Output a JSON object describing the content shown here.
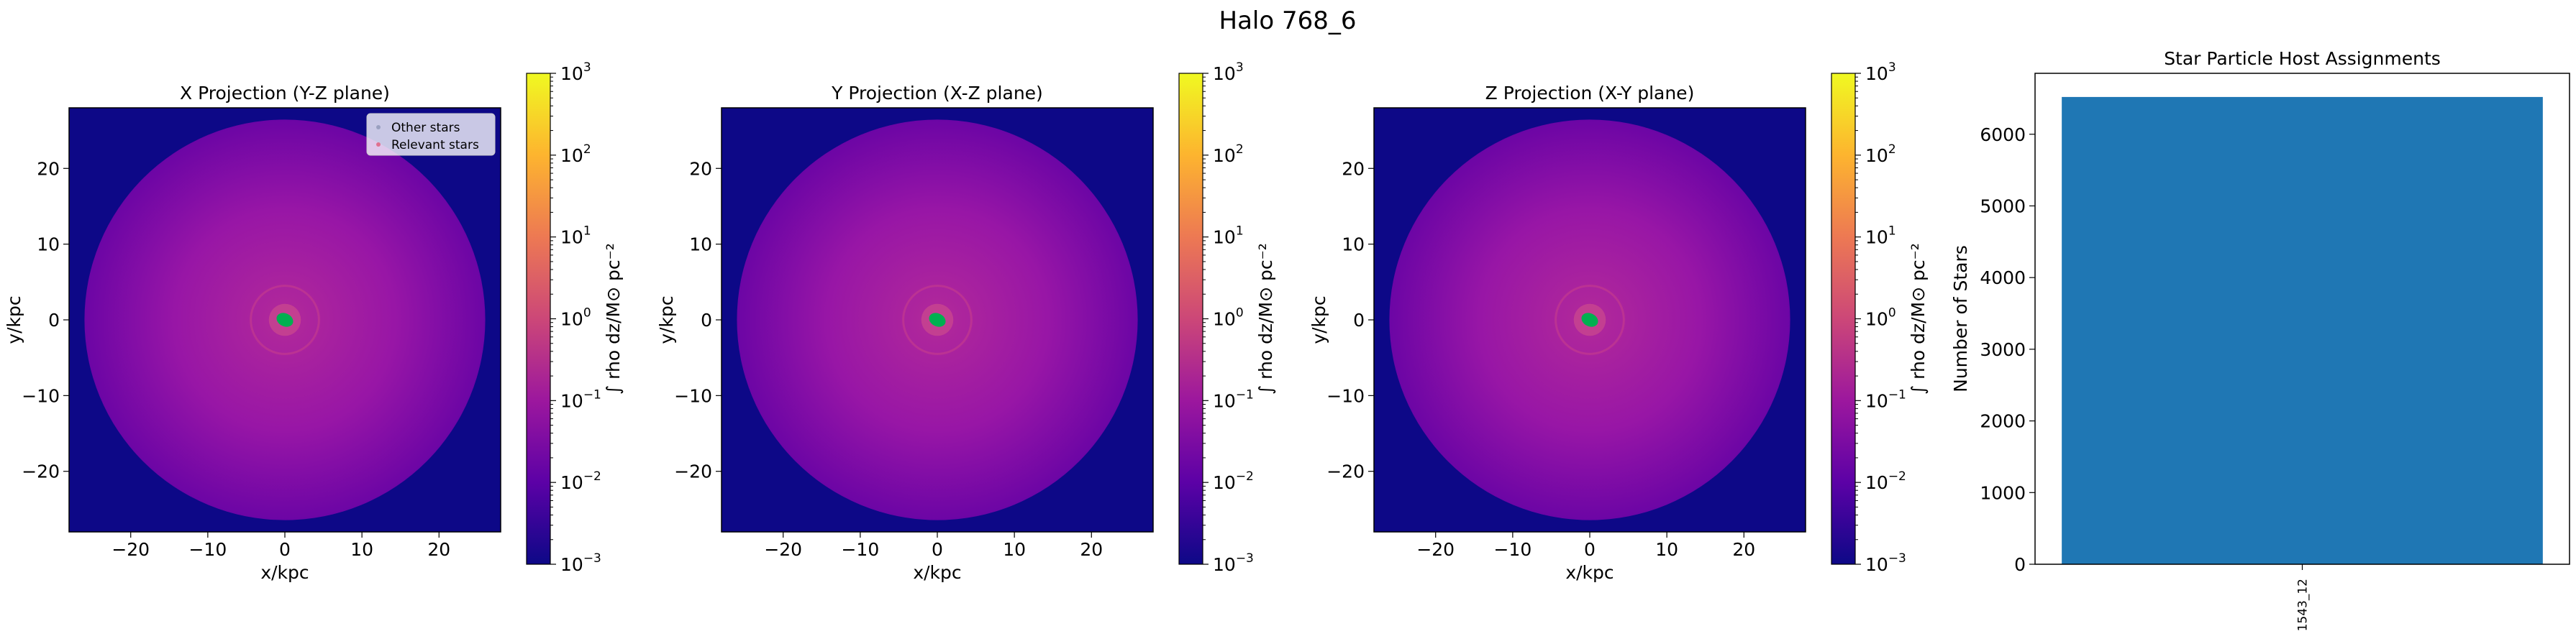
{
  "figure": {
    "suptitle": "Halo 768_6"
  },
  "colors": {
    "cmap": [
      "#0d0887",
      "#5c01a6",
      "#9c179e",
      "#cc4778",
      "#ed7953",
      "#fdb42f",
      "#f0f921"
    ],
    "halo_outer": "#6c05a5",
    "halo_mid": "#9816a6",
    "halo_inner": "#b2299a",
    "relevant_star": "#00b050",
    "bar": "#1f77b4"
  },
  "chart_data": [
    {
      "type": "heatmap",
      "title": "X Projection (Y-Z plane)",
      "xlabel": "x/kpc",
      "ylabel": "y/kpc",
      "xlim": [
        -28,
        28
      ],
      "ylim": [
        -28,
        28
      ],
      "xticks": [
        -20,
        -10,
        0,
        10,
        20
      ],
      "yticks": [
        -20,
        -10,
        0,
        10,
        20
      ],
      "xtick_labels": [
        "−20",
        "−10",
        "0",
        "10",
        "20"
      ],
      "ytick_labels": [
        "−20",
        "−10",
        "0",
        "10",
        "20"
      ],
      "colorbar": {
        "label": "∫ rho dz/M⊙ pc⁻²",
        "scale": "log",
        "range": [
          0.001,
          1000
        ],
        "tick_labels": [
          "10",
          "10",
          "10",
          "10",
          "10",
          "10",
          "10"
        ],
        "tick_exponents": [
          "−3",
          "−2",
          "−1",
          "0",
          "1",
          "2",
          "3"
        ]
      },
      "legend": {
        "position": "top-right",
        "entries": [
          "Other stars",
          "Relevant stars"
        ]
      },
      "star_cluster": {
        "x": 0,
        "y": 0
      },
      "halo_radius_kpc": 26
    },
    {
      "type": "heatmap",
      "title": "Y Projection (X-Z plane)",
      "xlabel": "x/kpc",
      "ylabel": "y/kpc",
      "xlim": [
        -28,
        28
      ],
      "ylim": [
        -28,
        28
      ],
      "xticks": [
        -20,
        -10,
        0,
        10,
        20
      ],
      "yticks": [
        -20,
        -10,
        0,
        10,
        20
      ],
      "xtick_labels": [
        "−20",
        "−10",
        "0",
        "10",
        "20"
      ],
      "ytick_labels": [
        "−20",
        "−10",
        "0",
        "10",
        "20"
      ],
      "colorbar": {
        "label": "∫ rho dz/M⊙ pc⁻²",
        "scale": "log",
        "range": [
          0.001,
          1000
        ],
        "tick_labels": [
          "10",
          "10",
          "10",
          "10",
          "10",
          "10",
          "10"
        ],
        "tick_exponents": [
          "−3",
          "−2",
          "−1",
          "0",
          "1",
          "2",
          "3"
        ]
      },
      "star_cluster": {
        "x": 0,
        "y": 0
      },
      "halo_radius_kpc": 26
    },
    {
      "type": "heatmap",
      "title": "Z Projection (X-Y plane)",
      "xlabel": "x/kpc",
      "ylabel": "y/kpc",
      "xlim": [
        -28,
        28
      ],
      "ylim": [
        -28,
        28
      ],
      "xticks": [
        -20,
        -10,
        0,
        10,
        20
      ],
      "yticks": [
        -20,
        -10,
        0,
        10,
        20
      ],
      "xtick_labels": [
        "−20",
        "−10",
        "0",
        "10",
        "20"
      ],
      "ytick_labels": [
        "−20",
        "−10",
        "0",
        "10",
        "20"
      ],
      "colorbar": {
        "label": "∫ rho dz/M⊙ pc⁻²",
        "scale": "log",
        "range": [
          0.001,
          1000
        ],
        "tick_labels": [
          "10",
          "10",
          "10",
          "10",
          "10",
          "10",
          "10"
        ],
        "tick_exponents": [
          "−3",
          "−2",
          "−1",
          "0",
          "1",
          "2",
          "3"
        ]
      },
      "star_cluster": {
        "x": 0,
        "y": 0
      },
      "halo_radius_kpc": 26
    },
    {
      "type": "bar",
      "title": "Star Particle Host Assignments",
      "xlabel": "",
      "ylabel": "Number of Stars",
      "categories": [
        "1543_12"
      ],
      "values": [
        6520
      ],
      "ylim": [
        0,
        6850
      ],
      "yticks": [
        0,
        1000,
        2000,
        3000,
        4000,
        5000,
        6000
      ],
      "ytick_labels": [
        "0",
        "1000",
        "2000",
        "3000",
        "4000",
        "5000",
        "6000"
      ]
    }
  ]
}
